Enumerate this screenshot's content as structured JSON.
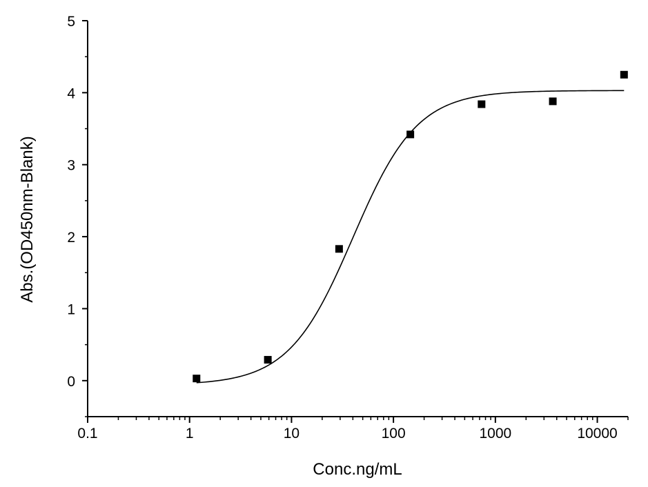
{
  "chart_data": {
    "type": "scatter",
    "x_scale": "log",
    "xlabel": "Conc.ng/mL",
    "ylabel": "Abs.(OD450nm-Blank)",
    "xlim": [
      0.1,
      20000
    ],
    "ylim": [
      -0.5,
      5
    ],
    "x_ticks": [
      {
        "value": 0.1,
        "label": "0.1"
      },
      {
        "value": 1,
        "label": "1"
      },
      {
        "value": 10,
        "label": "10"
      },
      {
        "value": 100,
        "label": "100"
      },
      {
        "value": 1000,
        "label": "1000"
      },
      {
        "value": 10000,
        "label": "10000"
      }
    ],
    "y_ticks": [
      {
        "value": 0,
        "label": "0"
      },
      {
        "value": 1,
        "label": "1"
      },
      {
        "value": 2,
        "label": "2"
      },
      {
        "value": 3,
        "label": "3"
      },
      {
        "value": 4,
        "label": "4"
      },
      {
        "value": 5,
        "label": "5"
      }
    ],
    "points": [
      {
        "x": 1.17,
        "y": 0.03
      },
      {
        "x": 5.86,
        "y": 0.29
      },
      {
        "x": 29.3,
        "y": 1.83
      },
      {
        "x": 146.5,
        "y": 3.42
      },
      {
        "x": 732,
        "y": 3.84
      },
      {
        "x": 3660,
        "y": 3.88
      },
      {
        "x": 18300,
        "y": 4.25
      }
    ],
    "fit_curve": {
      "model": "4PL",
      "bottom": -0.06,
      "top": 4.03,
      "ec50": 40,
      "hill": 1.38,
      "x_range": [
        1.17,
        18300
      ]
    },
    "colors": {
      "points": "#000000",
      "curve": "#000000",
      "axes": "#000000"
    }
  }
}
